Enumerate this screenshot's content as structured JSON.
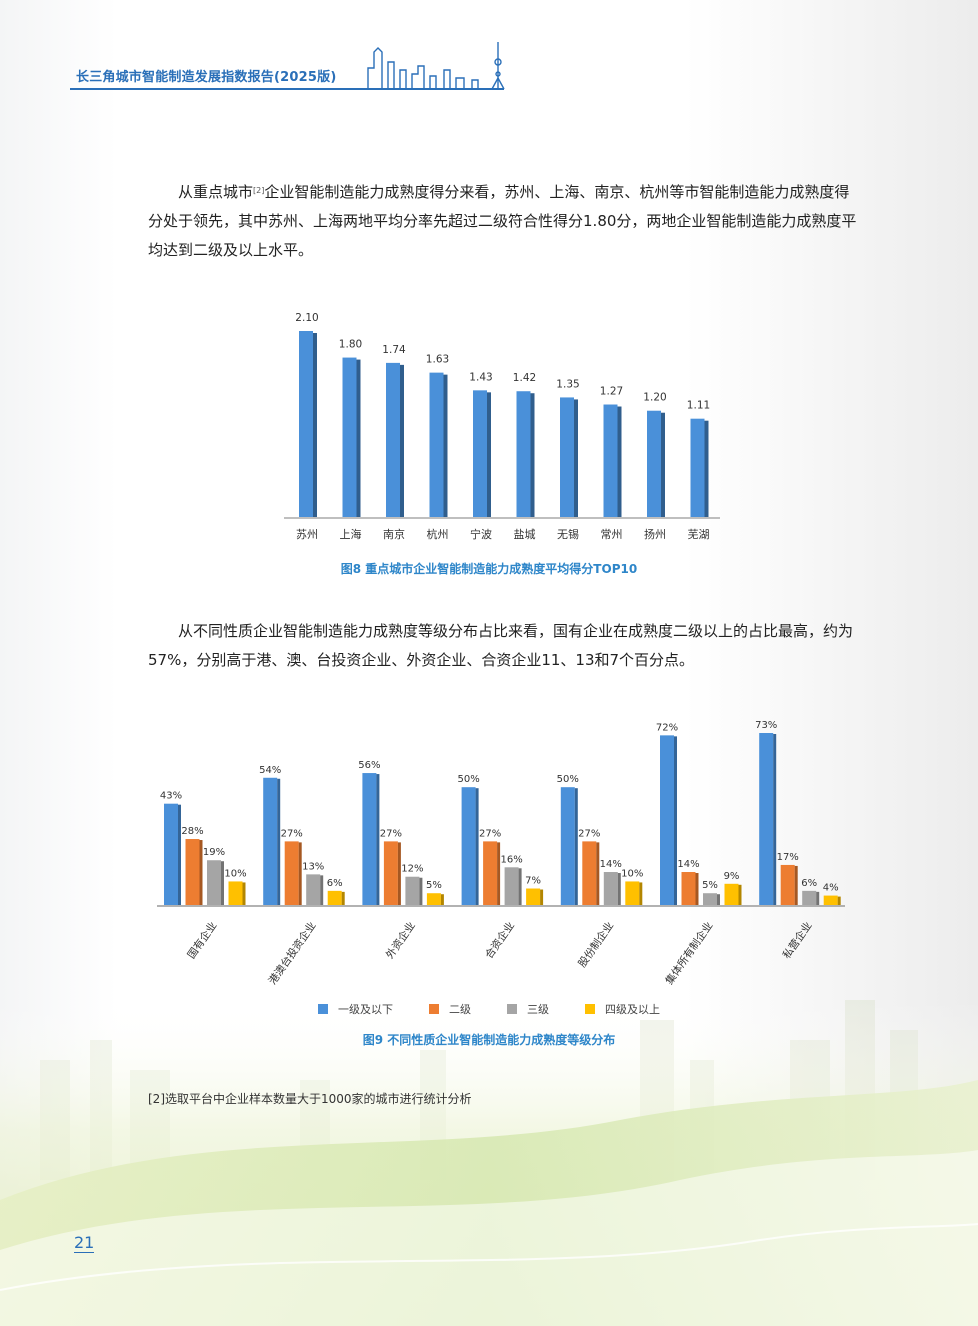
{
  "header": {
    "title": "长三角城市智能制造发展指数报告(2025版)"
  },
  "paragraph1": {
    "before_sup": "从重点城市",
    "sup": "[2]",
    "after_sup": "企业智能制造能力成熟度得分来看，苏州、上海、南京、杭州等市智能制造能力成熟度得分处于领先，其中苏州、上海两地平均分率先超过二级符合性得分1.80分，两地企业智能制造能力成熟度平均达到二级及以上水平。"
  },
  "figure8_caption": "图8 重点城市企业智能制造能力成熟度平均得分TOP10",
  "paragraph2": "从不同性质企业智能制造能力成熟度等级分布占比来看，国有企业在成熟度二级以上的占比最高，约为57%，分别高于港、澳、台投资企业、外资企业、合资企业11、13和7个百分点。",
  "figure9_caption": "图9 不同性质企业智能制造能力成熟度等级分布",
  "footnote": "[2]选取平台中企业样本数量大于1000家的城市进行统计分析",
  "page_number": "21",
  "chart_data": [
    {
      "type": "bar",
      "categories": [
        "苏州",
        "上海",
        "南京",
        "杭州",
        "宁波",
        "盐城",
        "无锡",
        "常州",
        "扬州",
        "芜湖"
      ],
      "values": [
        2.1,
        1.8,
        1.74,
        1.63,
        1.43,
        1.42,
        1.35,
        1.27,
        1.2,
        1.11
      ],
      "labels": [
        "2.10",
        "1.80",
        "1.74",
        "1.63",
        "1.43",
        "1.42",
        "1.35",
        "1.27",
        "1.20",
        "1.11"
      ],
      "ylim": [
        0,
        2.1
      ],
      "grid": false,
      "color": "#4a90d9"
    },
    {
      "type": "bar",
      "categories": [
        "国有企业",
        "港澳台投资企业",
        "外资企业",
        "合资企业",
        "股份制企业",
        "集体所有制企业",
        "私营企业"
      ],
      "series": [
        {
          "name": "一级及以下",
          "values": [
            43,
            54,
            56,
            50,
            50,
            72,
            73
          ],
          "color": "#4a90d9"
        },
        {
          "name": "二级",
          "values": [
            28,
            27,
            27,
            27,
            27,
            14,
            17
          ],
          "color": "#ed7d31"
        },
        {
          "name": "三级",
          "values": [
            19,
            13,
            12,
            16,
            14,
            5,
            6
          ],
          "color": "#a5a5a5"
        },
        {
          "name": "四级及以上",
          "values": [
            10,
            6,
            5,
            7,
            10,
            9,
            4
          ],
          "color": "#ffc000"
        }
      ],
      "value_suffix": "%",
      "ylim": [
        0,
        73
      ],
      "grid": false,
      "legend_position": "bottom"
    }
  ]
}
